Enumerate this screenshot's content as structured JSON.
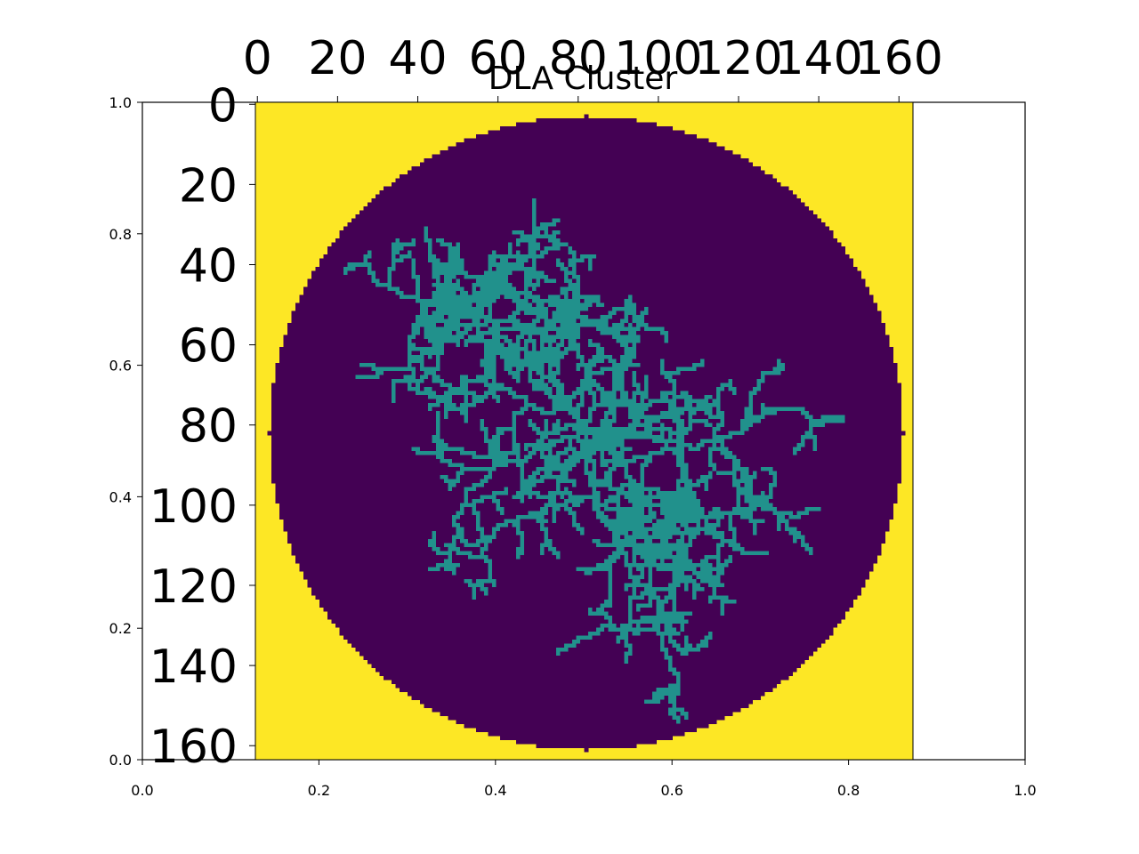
{
  "chart_data": [
    {
      "type": "heatmap",
      "title": "DLA Cluster",
      "image_grid": {
        "rows": 164,
        "cols": 164,
        "disk_center": [
          82,
          82
        ],
        "disk_radius": 79,
        "values": {
          "outside_disk": 1.0,
          "inside_disk": 0.0,
          "cluster": 0.5
        },
        "colors": {
          "outside_disk": "#fde725",
          "inside_disk": "#440154",
          "cluster": "#21918c"
        },
        "seed": [
          82,
          82
        ],
        "branches_deg": [
          -100,
          -40,
          10,
          60,
          105,
          160,
          210,
          255
        ]
      },
      "xticks": [
        "0",
        "20",
        "40",
        "60",
        "80",
        "100",
        "120",
        "140",
        "160"
      ],
      "yticks": [
        "0",
        "20",
        "40",
        "60",
        "80",
        "100",
        "120",
        "140",
        "160"
      ],
      "xaxis_position": "top",
      "yaxis_position": "left"
    },
    {
      "type": "scatter",
      "title": "",
      "xlim": [
        0.0,
        1.0
      ],
      "ylim": [
        0.0,
        1.0
      ],
      "xticks": [
        "0.0",
        "0.2",
        "0.4",
        "0.6",
        "0.8",
        "1.0"
      ],
      "yticks": [
        "0.0",
        "0.2",
        "0.4",
        "0.6",
        "0.8",
        "1.0"
      ],
      "series": []
    }
  ]
}
